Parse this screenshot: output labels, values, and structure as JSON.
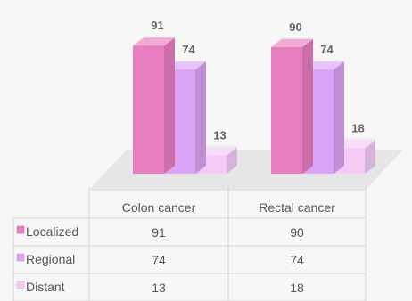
{
  "chart_data": {
    "type": "bar",
    "categories": [
      "Colon cancer",
      "Rectal cancer"
    ],
    "series": [
      {
        "name": "Localized",
        "values": [
          91,
          90
        ],
        "color": "#e87ec0"
      },
      {
        "name": "Regional",
        "values": [
          74,
          74
        ],
        "color": "#dba3f5"
      },
      {
        "name": "Distant",
        "values": [
          13,
          18
        ],
        "color": "#f3cbf5"
      }
    ],
    "ylim": [
      0,
      100
    ],
    "grid": false,
    "legend": "data-table-left",
    "style": "3d-columns-with-data-table"
  }
}
